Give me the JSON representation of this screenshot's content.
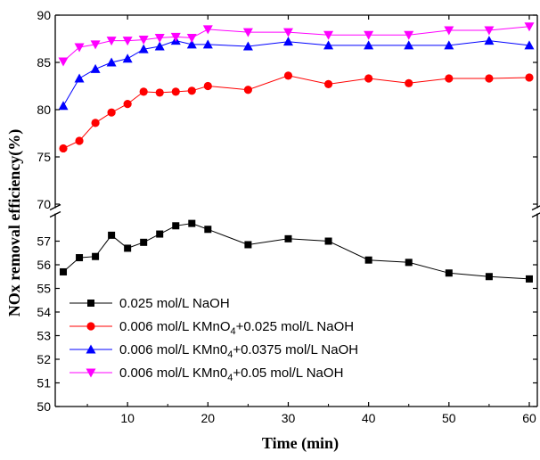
{
  "chart_data": {
    "type": "line",
    "xlabel": "Time (min)",
    "ylabel": "NOx removal efficiency(%)",
    "xlim": [
      1,
      61
    ],
    "x_ticks": [
      "10",
      "20",
      "30",
      "40",
      "50",
      "60"
    ],
    "y_upper": {
      "range": [
        70,
        90
      ],
      "ticks": [
        "70",
        "75",
        "80",
        "85",
        "90"
      ]
    },
    "y_lower": {
      "range": [
        50,
        58
      ],
      "ticks": [
        "50",
        "51",
        "52",
        "53",
        "54",
        "55",
        "56",
        "57"
      ]
    },
    "axis_break": true,
    "grid": false,
    "legend_position": "lower-left",
    "series": [
      {
        "name": "0.025 mol/L NaOH",
        "legend": {
          "pre": "0.025 mol/L NaOH",
          "sub": "",
          "post": ""
        },
        "color": "#000000",
        "marker": "square",
        "x": [
          2,
          4,
          6,
          8,
          10,
          12,
          14,
          16,
          18,
          20,
          25,
          30,
          35,
          40,
          45,
          50,
          55,
          60
        ],
        "y": [
          55.7,
          56.3,
          56.35,
          57.25,
          56.7,
          56.95,
          57.3,
          57.65,
          57.75,
          57.5,
          56.85,
          57.1,
          57.0,
          56.2,
          56.1,
          55.65,
          55.5,
          55.4
        ]
      },
      {
        "name": "0.006 mol/L KMnO4+0.025 mol/L NaOH",
        "legend": {
          "pre": "0.006 mol/L KMnO",
          "sub": "4",
          "post": "+0.025 mol/L NaOH"
        },
        "color": "#ff0000",
        "marker": "circle",
        "x": [
          2,
          4,
          6,
          8,
          10,
          12,
          14,
          16,
          18,
          20,
          25,
          30,
          35,
          40,
          45,
          50,
          55,
          60
        ],
        "y": [
          75.9,
          76.7,
          78.6,
          79.7,
          80.6,
          81.9,
          81.8,
          81.9,
          82.0,
          82.5,
          82.1,
          83.6,
          82.7,
          83.3,
          82.8,
          83.3,
          83.3,
          83.4
        ]
      },
      {
        "name": "0.006 mol/L KMn04+0.0375 mol/L NaOH",
        "legend": {
          "pre": "0.006 mol/L KMn0",
          "sub": "4",
          "post": "+0.0375 mol/L NaOH"
        },
        "color": "#0000ff",
        "marker": "triangle-up",
        "x": [
          2,
          4,
          6,
          8,
          10,
          12,
          14,
          16,
          18,
          20,
          25,
          30,
          35,
          40,
          45,
          50,
          55,
          60
        ],
        "y": [
          80.4,
          83.3,
          84.3,
          85.0,
          85.4,
          86.4,
          86.7,
          87.3,
          86.9,
          86.9,
          86.7,
          87.2,
          86.8,
          86.8,
          86.8,
          86.8,
          87.3,
          86.8
        ]
      },
      {
        "name": "0.006 mol/L KMn04+0.05 mol/L NaOH",
        "legend": {
          "pre": "0.006 mol/L KMn0",
          "sub": "4",
          "post": "+0.05 mol/L NaOH"
        },
        "color": "#ff00ff",
        "marker": "triangle-down",
        "x": [
          2,
          4,
          6,
          8,
          10,
          12,
          14,
          16,
          18,
          20,
          25,
          30,
          35,
          40,
          45,
          50,
          55,
          60
        ],
        "y": [
          85.1,
          86.6,
          86.9,
          87.3,
          87.3,
          87.4,
          87.6,
          87.7,
          87.6,
          88.5,
          88.2,
          88.2,
          87.9,
          87.9,
          87.9,
          88.4,
          88.4,
          88.8
        ]
      }
    ]
  }
}
